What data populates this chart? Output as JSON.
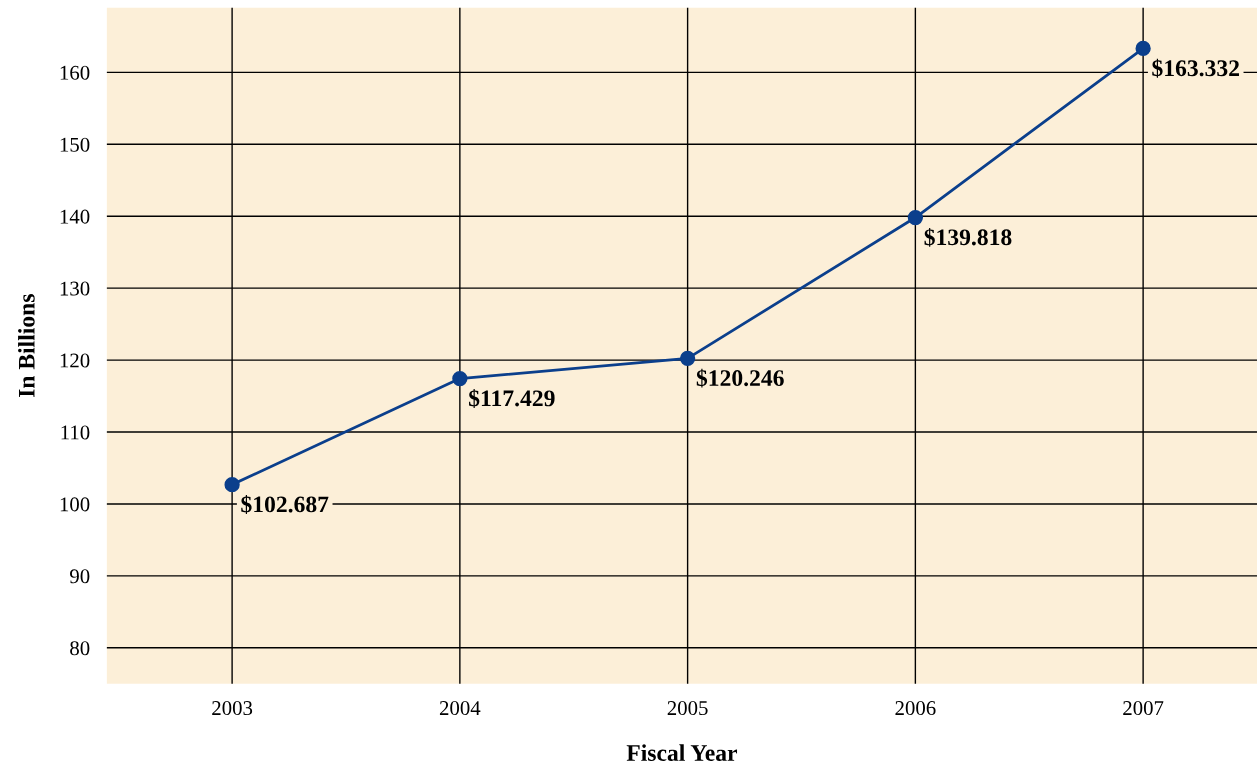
{
  "chart_data": {
    "type": "line",
    "xlabel": "Fiscal Year",
    "ylabel": "In Billions",
    "categories": [
      "2003",
      "2004",
      "2005",
      "2006",
      "2007"
    ],
    "series": [
      {
        "color": "#0b3f8c",
        "values": [
          102.687,
          117.429,
          120.246,
          139.818,
          163.332
        ],
        "value_labels": [
          "$102.687",
          "$117.429",
          "$120.246",
          "$139.818",
          "$163.332"
        ]
      }
    ],
    "ylim": [
      75,
      169
    ],
    "yticks": [
      80,
      90,
      100,
      110,
      120,
      130,
      140,
      150,
      160
    ],
    "grid": true,
    "marker": "circle",
    "line_style": "solid",
    "legend": false
  }
}
